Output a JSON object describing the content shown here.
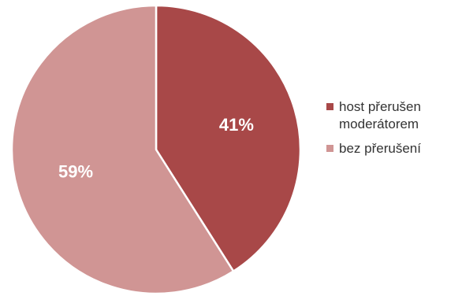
{
  "chart_data": {
    "type": "pie",
    "title": "",
    "slices": [
      {
        "label": "host přerušen\nmoderátorem",
        "value": 41,
        "display": "41%",
        "color": "#a84848"
      },
      {
        "label": "bez přerušení",
        "value": 59,
        "display": "59%",
        "color": "#d09594"
      }
    ],
    "start_angle_deg": 0,
    "direction": "clockwise",
    "legend_position": "right"
  }
}
